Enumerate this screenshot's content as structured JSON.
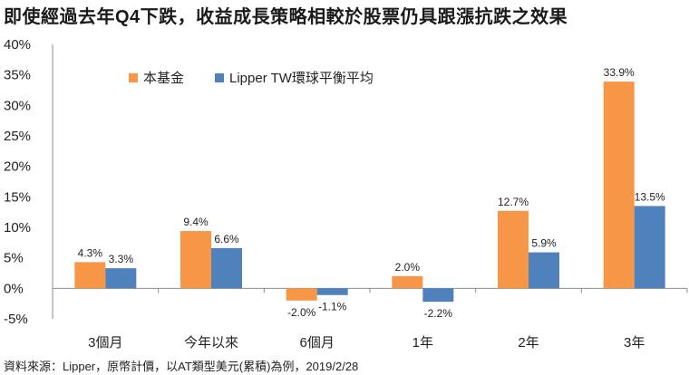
{
  "title": "即使經過去年Q4下跌，收益成長策略相較於股票仍具跟漲抗跌之效果",
  "footnote": "資料來源：Lipper，原幣計價，以AT類型美元(累積)為例，2019/2/28",
  "chart_data": {
    "type": "bar",
    "categories": [
      "3個月",
      "今年以來",
      "6個月",
      "1年",
      "2年",
      "3年"
    ],
    "series": [
      {
        "name": "本基金",
        "color": "#f79646",
        "values": [
          4.3,
          9.4,
          -2.0,
          2.0,
          12.7,
          33.9
        ],
        "labels": [
          "4.3%",
          "9.4%",
          "-2.0%",
          "2.0%",
          "12.7%",
          "33.9%"
        ]
      },
      {
        "name": "Lipper TW環球平衡平均",
        "color": "#4f81bd",
        "values": [
          3.3,
          6.6,
          -1.1,
          -2.2,
          5.9,
          13.5
        ],
        "labels": [
          "3.3%",
          "6.6%",
          "-1.1%",
          "-2.2%",
          "5.9%",
          "13.5%"
        ]
      }
    ],
    "yticks": [
      "40%",
      "35%",
      "30%",
      "25%",
      "20%",
      "15%",
      "10%",
      "5%",
      "0%",
      "-5%"
    ],
    "ylim": [
      -5,
      40
    ],
    "legend_position": "top-left"
  }
}
